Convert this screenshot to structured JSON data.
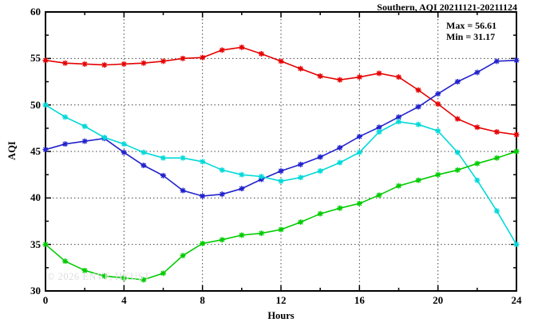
{
  "chart_data": {
    "type": "line",
    "title": "Southern, AQI 20211121-20211124",
    "xlabel": "Hours",
    "ylabel": "AQI",
    "xlim": [
      0,
      24
    ],
    "ylim": [
      30,
      60
    ],
    "x_major_ticks": [
      0,
      4,
      8,
      12,
      16,
      20,
      24
    ],
    "x_minor_ticks": [
      2,
      6,
      10,
      14,
      18,
      22
    ],
    "y_major_ticks": [
      30,
      35,
      40,
      45,
      50,
      55,
      60
    ],
    "y_minor_ticks": [
      32.5,
      37.5,
      42.5,
      47.5,
      52.5,
      57.5
    ],
    "grid": "dotted lines at interior major ticks",
    "legend": "none",
    "marker": "asterisk",
    "annotation": {
      "max_label": "Max = 56.61",
      "min_label": "Min = 31.17"
    },
    "watermark": "© 2026 ENVF, HKUST",
    "x": [
      0,
      1,
      2,
      3,
      4,
      5,
      6,
      7,
      8,
      9,
      10,
      11,
      12,
      13,
      14,
      15,
      16,
      17,
      18,
      19,
      20,
      21,
      22,
      23,
      24
    ],
    "series": [
      {
        "name": "red",
        "color": "#e60000",
        "values": [
          54.8,
          54.5,
          54.4,
          54.3,
          54.4,
          54.5,
          54.7,
          55.0,
          55.1,
          55.9,
          56.2,
          55.5,
          54.7,
          53.9,
          53.1,
          52.7,
          53.0,
          53.4,
          53.0,
          51.6,
          50.1,
          48.5,
          47.6,
          47.1,
          46.8
        ]
      },
      {
        "name": "blue",
        "color": "#2222cc",
        "values": [
          45.2,
          45.8,
          46.1,
          46.4,
          44.9,
          43.5,
          42.4,
          40.8,
          40.2,
          40.4,
          41.0,
          42.0,
          42.9,
          43.6,
          44.4,
          45.4,
          46.6,
          47.6,
          48.7,
          49.8,
          51.2,
          52.5,
          53.5,
          54.7,
          54.8
        ]
      },
      {
        "name": "cyan",
        "color": "#00d9d9",
        "values": [
          50.0,
          48.7,
          47.7,
          46.5,
          45.8,
          44.9,
          44.3,
          44.3,
          43.9,
          43.0,
          42.5,
          42.3,
          41.8,
          42.2,
          42.9,
          43.8,
          44.9,
          47.1,
          48.2,
          47.9,
          47.2,
          44.9,
          41.9,
          38.6,
          35.0
        ]
      },
      {
        "name": "green",
        "color": "#00cc00",
        "values": [
          35.0,
          33.2,
          32.2,
          31.6,
          31.4,
          31.2,
          31.9,
          33.8,
          35.1,
          35.5,
          36.0,
          36.2,
          36.6,
          37.4,
          38.3,
          38.9,
          39.4,
          40.3,
          41.3,
          41.9,
          42.5,
          43.0,
          43.7,
          44.3,
          45.0
        ]
      }
    ]
  }
}
